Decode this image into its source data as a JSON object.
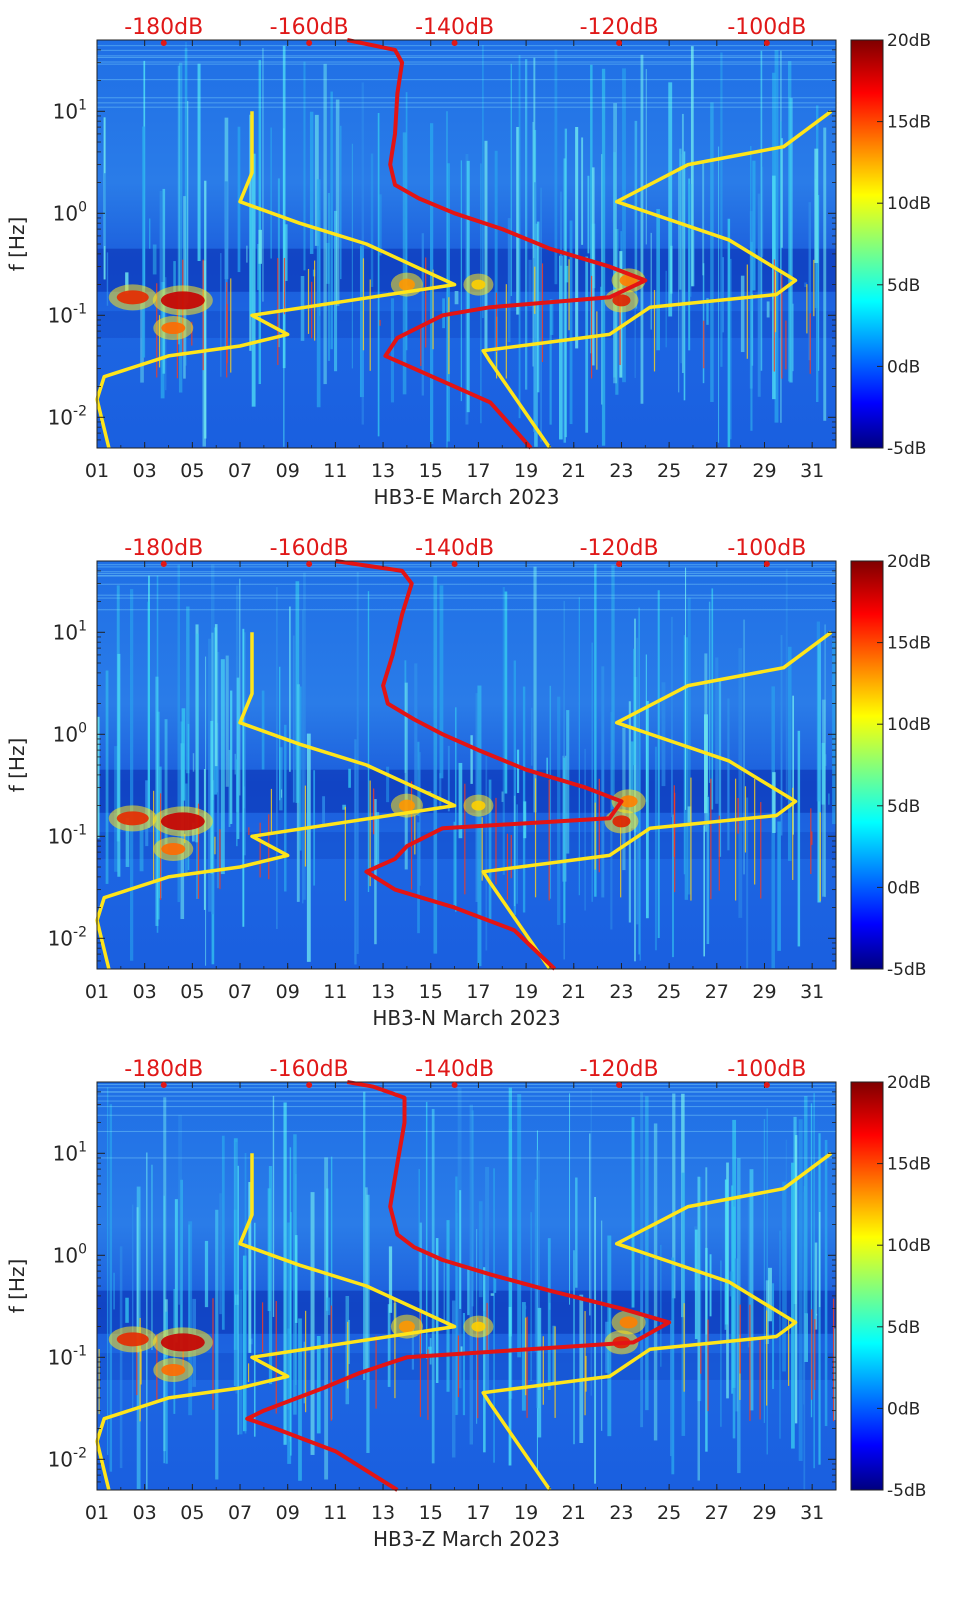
{
  "figure": {
    "panel_count": 3
  },
  "chart_data": [
    {
      "type": "heatmap",
      "title": "",
      "xlabel": "HB3-E March 2023",
      "ylabel": "f [Hz]",
      "x_ticks": [
        "01",
        "03",
        "05",
        "07",
        "09",
        "11",
        "13",
        "15",
        "17",
        "19",
        "21",
        "23",
        "25",
        "27",
        "29",
        "31"
      ],
      "x_range_days": [
        1,
        32
      ],
      "y_scale": "log",
      "y_range": [
        0.005,
        50
      ],
      "y_ticks": [
        {
          "label_base": "10",
          "label_exp": "-2",
          "value": 0.01
        },
        {
          "label_base": "10",
          "label_exp": "-1",
          "value": 0.1
        },
        {
          "label_base": "10",
          "label_exp": "0",
          "value": 1
        },
        {
          "label_base": "10",
          "label_exp": "1",
          "value": 10
        }
      ],
      "top_axis_labels": [
        "-180dB",
        "-160dB",
        "-140dB",
        "-120dB",
        "-100dB"
      ],
      "top_axis_day_positions": [
        3.8,
        9.9,
        16.0,
        22.9,
        29.1
      ],
      "colorbar": {
        "range": [
          -5,
          20
        ],
        "ticks": [
          "20dB",
          "15dB",
          "10dB",
          "5dB",
          "0dB",
          "-5dB"
        ],
        "colormap": "jet"
      },
      "series": [
        {
          "name": "low noise model",
          "color": "#ffe51a",
          "points": [
            [
              1.5,
              0.005
            ],
            [
              1.0,
              0.015
            ],
            [
              1.3,
              0.025
            ],
            [
              4,
              0.04
            ],
            [
              7,
              0.05
            ],
            [
              9,
              0.065
            ],
            [
              7.5,
              0.1
            ],
            [
              16,
              0.2
            ],
            [
              12.3,
              0.5
            ],
            [
              9.5,
              0.8
            ],
            [
              7,
              1.3
            ],
            [
              7.5,
              2.5
            ],
            [
              7.5,
              10
            ]
          ]
        },
        {
          "name": "high noise model",
          "color": "#ffe51a",
          "points": [
            [
              20.0,
              0.005
            ],
            [
              17.5,
              0.035
            ],
            [
              17.2,
              0.045
            ],
            [
              22.5,
              0.065
            ],
            [
              24.2,
              0.12
            ],
            [
              29.5,
              0.16
            ],
            [
              30.3,
              0.22
            ],
            [
              27.5,
              0.55
            ],
            [
              22.8,
              1.3
            ],
            [
              25.8,
              3.0
            ],
            [
              29.8,
              4.5
            ],
            [
              31.8,
              10
            ]
          ]
        },
        {
          "name": "HB3-E PSD",
          "color": "#e31414",
          "points": [
            [
              19.2,
              0.005
            ],
            [
              17.5,
              0.014
            ],
            [
              14.3,
              0.03
            ],
            [
              13.1,
              0.04
            ],
            [
              13.6,
              0.06
            ],
            [
              15.5,
              0.1
            ],
            [
              17.5,
              0.12
            ],
            [
              22.5,
              0.15
            ],
            [
              24,
              0.22
            ],
            [
              22.5,
              0.3
            ],
            [
              20,
              0.45
            ],
            [
              18,
              0.7
            ],
            [
              16,
              1.0
            ],
            [
              14.5,
              1.4
            ],
            [
              13.5,
              1.9
            ],
            [
              13.3,
              3
            ],
            [
              13.5,
              6
            ],
            [
              13.6,
              15
            ],
            [
              13.8,
              30
            ],
            [
              13.5,
              40
            ],
            [
              11.5,
              50
            ]
          ]
        }
      ]
    },
    {
      "type": "heatmap",
      "title": "",
      "xlabel": "HB3-N March 2023",
      "ylabel": "f [Hz]",
      "x_ticks": [
        "01",
        "03",
        "05",
        "07",
        "09",
        "11",
        "13",
        "15",
        "17",
        "19",
        "21",
        "23",
        "25",
        "27",
        "29",
        "31"
      ],
      "x_range_days": [
        1,
        32
      ],
      "y_scale": "log",
      "y_range": [
        0.005,
        50
      ],
      "y_ticks": [
        {
          "label_base": "10",
          "label_exp": "-2",
          "value": 0.01
        },
        {
          "label_base": "10",
          "label_exp": "-1",
          "value": 0.1
        },
        {
          "label_base": "10",
          "label_exp": "0",
          "value": 1
        },
        {
          "label_base": "10",
          "label_exp": "1",
          "value": 10
        }
      ],
      "top_axis_labels": [
        "-180dB",
        "-160dB",
        "-140dB",
        "-120dB",
        "-100dB"
      ],
      "top_axis_day_positions": [
        3.8,
        9.9,
        16.0,
        22.9,
        29.1
      ],
      "colorbar": {
        "range": [
          -5,
          20
        ],
        "ticks": [
          "20dB",
          "15dB",
          "10dB",
          "5dB",
          "0dB",
          "-5dB"
        ],
        "colormap": "jet"
      },
      "series": [
        {
          "name": "low noise model",
          "color": "#ffe51a",
          "points": [
            [
              1.5,
              0.005
            ],
            [
              1.0,
              0.015
            ],
            [
              1.3,
              0.025
            ],
            [
              4,
              0.04
            ],
            [
              7,
              0.05
            ],
            [
              9,
              0.065
            ],
            [
              7.5,
              0.1
            ],
            [
              16,
              0.2
            ],
            [
              12.3,
              0.5
            ],
            [
              9.5,
              0.8
            ],
            [
              7,
              1.3
            ],
            [
              7.5,
              2.5
            ],
            [
              7.5,
              10
            ]
          ]
        },
        {
          "name": "high noise model",
          "color": "#ffe51a",
          "points": [
            [
              20.0,
              0.005
            ],
            [
              17.5,
              0.035
            ],
            [
              17.2,
              0.045
            ],
            [
              22.5,
              0.065
            ],
            [
              24.2,
              0.12
            ],
            [
              29.5,
              0.16
            ],
            [
              30.3,
              0.22
            ],
            [
              27.5,
              0.55
            ],
            [
              22.8,
              1.3
            ],
            [
              25.8,
              3.0
            ],
            [
              29.8,
              4.5
            ],
            [
              31.8,
              10
            ]
          ]
        },
        {
          "name": "HB3-N PSD",
          "color": "#e31414",
          "points": [
            [
              20.2,
              0.005
            ],
            [
              18.5,
              0.012
            ],
            [
              16,
              0.02
            ],
            [
              13.5,
              0.03
            ],
            [
              12.3,
              0.045
            ],
            [
              13.5,
              0.06
            ],
            [
              14,
              0.08
            ],
            [
              15.5,
              0.12
            ],
            [
              22.5,
              0.15
            ],
            [
              23,
              0.22
            ],
            [
              21.5,
              0.3
            ],
            [
              19,
              0.45
            ],
            [
              17,
              0.7
            ],
            [
              15.5,
              1.0
            ],
            [
              14.3,
              1.4
            ],
            [
              13.2,
              2
            ],
            [
              13,
              3
            ],
            [
              13.4,
              6
            ],
            [
              13.8,
              15
            ],
            [
              14.2,
              30
            ],
            [
              13.8,
              40
            ],
            [
              11,
              50
            ]
          ]
        }
      ]
    },
    {
      "type": "heatmap",
      "title": "",
      "xlabel": "HB3-Z March 2023",
      "ylabel": "f [Hz]",
      "x_ticks": [
        "01",
        "03",
        "05",
        "07",
        "09",
        "11",
        "13",
        "15",
        "17",
        "19",
        "21",
        "23",
        "25",
        "27",
        "29",
        "31"
      ],
      "x_range_days": [
        1,
        32
      ],
      "y_scale": "log",
      "y_range": [
        0.005,
        50
      ],
      "y_ticks": [
        {
          "label_base": "10",
          "label_exp": "-2",
          "value": 0.01
        },
        {
          "label_base": "10",
          "label_exp": "-1",
          "value": 0.1
        },
        {
          "label_base": "10",
          "label_exp": "0",
          "value": 1
        },
        {
          "label_base": "10",
          "label_exp": "1",
          "value": 10
        }
      ],
      "top_axis_labels": [
        "-180dB",
        "-160dB",
        "-140dB",
        "-120dB",
        "-100dB"
      ],
      "top_axis_day_positions": [
        3.8,
        9.9,
        16.0,
        22.9,
        29.1
      ],
      "colorbar": {
        "range": [
          -5,
          20
        ],
        "ticks": [
          "20dB",
          "15dB",
          "10dB",
          "5dB",
          "0dB",
          "-5dB"
        ],
        "colormap": "jet"
      },
      "series": [
        {
          "name": "low noise model",
          "color": "#ffe51a",
          "points": [
            [
              1.5,
              0.005
            ],
            [
              1.0,
              0.015
            ],
            [
              1.3,
              0.025
            ],
            [
              4,
              0.04
            ],
            [
              7,
              0.05
            ],
            [
              9,
              0.065
            ],
            [
              7.5,
              0.1
            ],
            [
              16,
              0.2
            ],
            [
              12.3,
              0.5
            ],
            [
              9.5,
              0.8
            ],
            [
              7,
              1.3
            ],
            [
              7.5,
              2.5
            ],
            [
              7.5,
              10
            ]
          ]
        },
        {
          "name": "high noise model",
          "color": "#ffe51a",
          "points": [
            [
              20.0,
              0.005
            ],
            [
              17.5,
              0.035
            ],
            [
              17.2,
              0.045
            ],
            [
              22.5,
              0.065
            ],
            [
              24.2,
              0.12
            ],
            [
              29.5,
              0.16
            ],
            [
              30.3,
              0.22
            ],
            [
              27.5,
              0.55
            ],
            [
              22.8,
              1.3
            ],
            [
              25.8,
              3.0
            ],
            [
              29.8,
              4.5
            ],
            [
              31.8,
              10
            ]
          ]
        },
        {
          "name": "HB3-Z PSD",
          "color": "#e31414",
          "points": [
            [
              13.6,
              0.005
            ],
            [
              11,
              0.012
            ],
            [
              8.5,
              0.02
            ],
            [
              7.3,
              0.025
            ],
            [
              8,
              0.03
            ],
            [
              10.5,
              0.05
            ],
            [
              12,
              0.07
            ],
            [
              14,
              0.1
            ],
            [
              23.5,
              0.14
            ],
            [
              25,
              0.22
            ],
            [
              23,
              0.3
            ],
            [
              20,
              0.45
            ],
            [
              17.5,
              0.65
            ],
            [
              15.5,
              0.9
            ],
            [
              14.3,
              1.2
            ],
            [
              13.6,
              1.6
            ],
            [
              13.3,
              3
            ],
            [
              13.6,
              8
            ],
            [
              13.9,
              20
            ],
            [
              13.9,
              35
            ],
            [
              12.6,
              45
            ],
            [
              11.5,
              50
            ]
          ]
        }
      ]
    }
  ]
}
